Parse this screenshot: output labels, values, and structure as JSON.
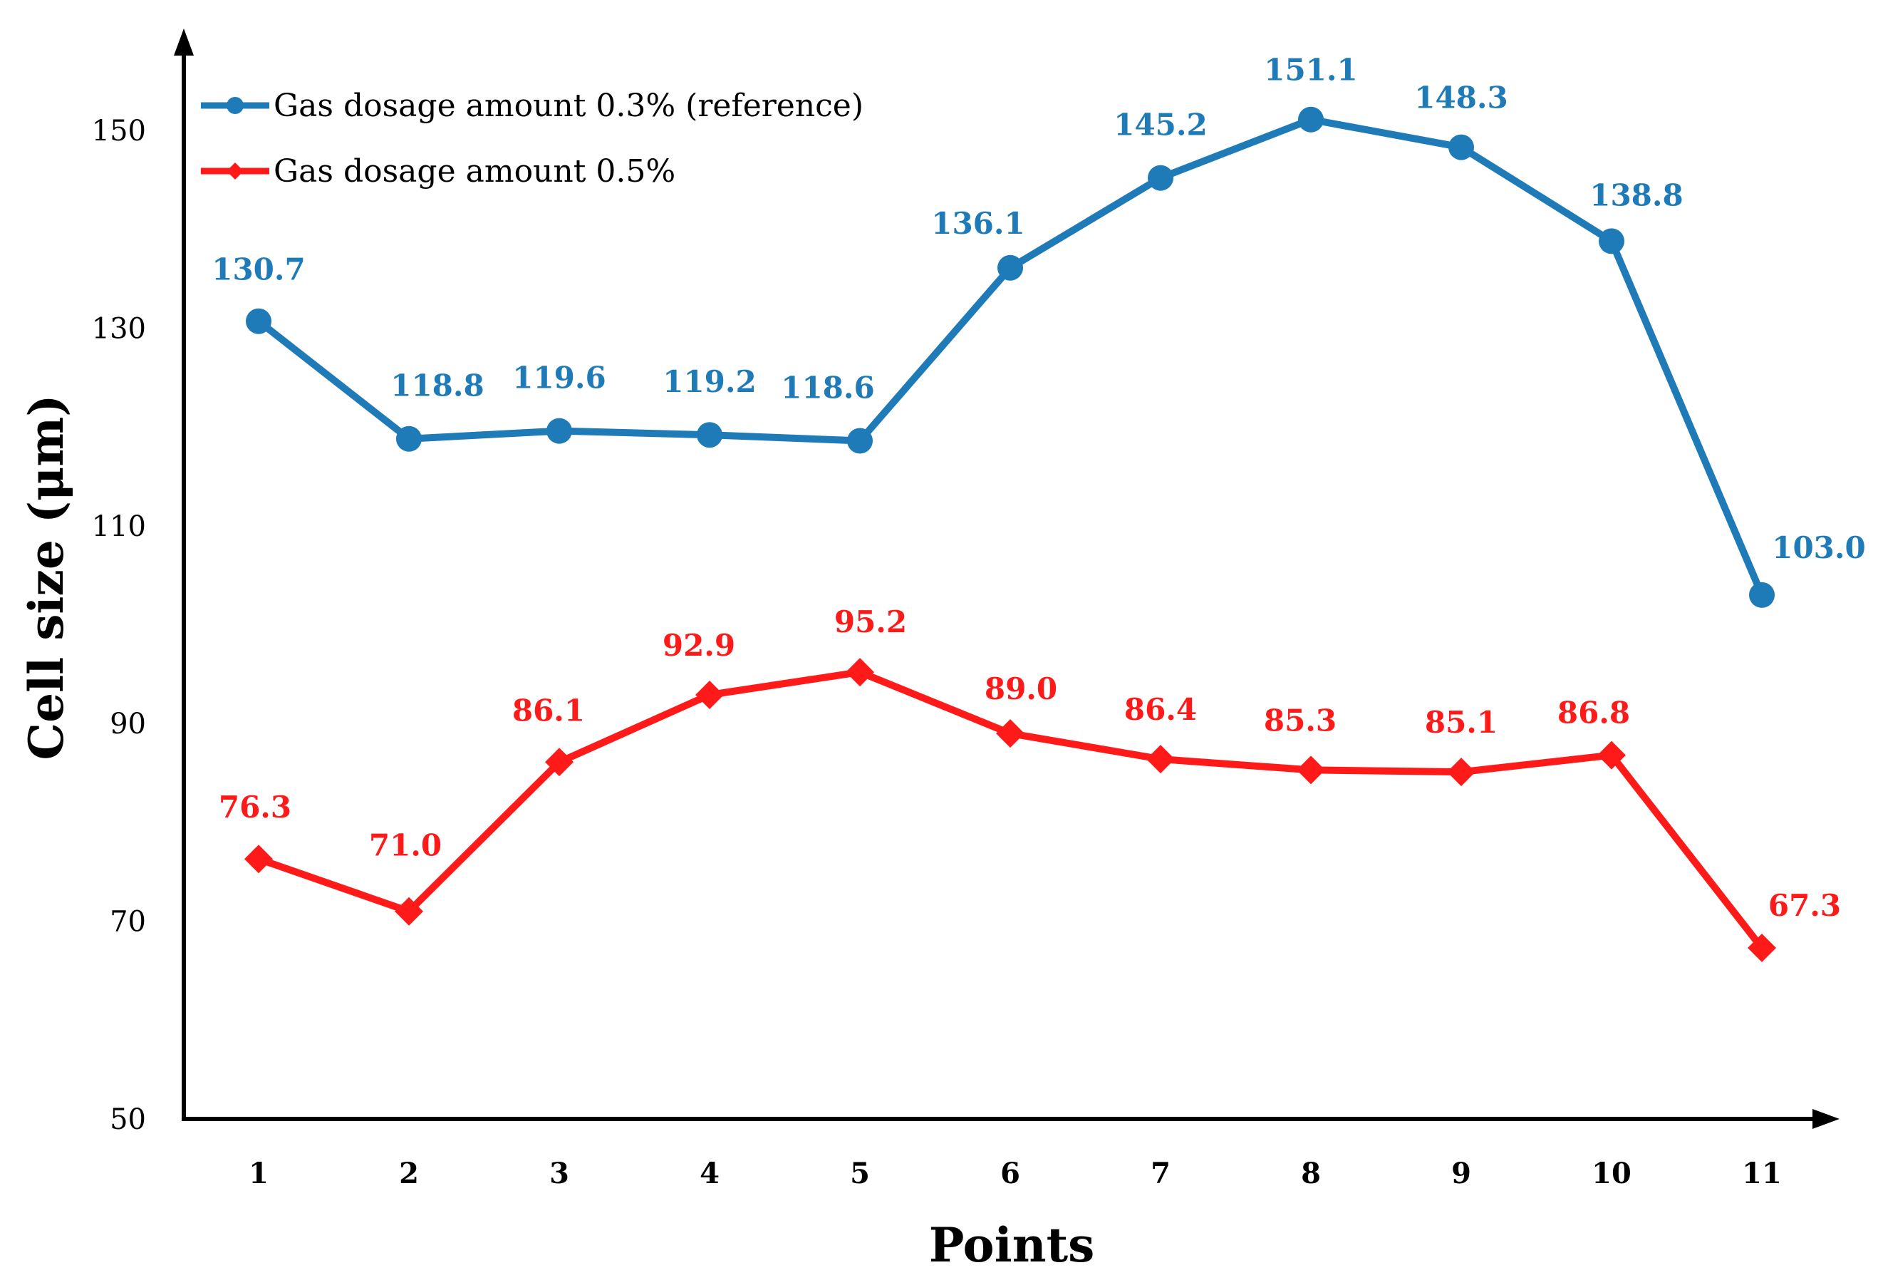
{
  "chart_data": {
    "type": "line",
    "title": "",
    "xlabel": "Points",
    "ylabel": "Cell size (μm)",
    "categories": [
      "1",
      "2",
      "3",
      "4",
      "5",
      "6",
      "7",
      "8",
      "9",
      "10",
      "11"
    ],
    "yticks": [
      "50",
      "70",
      "90",
      "110",
      "130",
      "150"
    ],
    "ylim": [
      50,
      160
    ],
    "grid": false,
    "legend_position": "top-left",
    "series": [
      {
        "name": "Gas dosage amount 0.3% (reference)",
        "color": "#1F7BB8",
        "marker": "circle",
        "values": [
          130.7,
          118.8,
          119.6,
          119.2,
          118.6,
          136.1,
          145.2,
          151.1,
          148.3,
          138.8,
          103.0
        ],
        "labels": [
          "130.7",
          "118.8",
          "119.6",
          "119.2",
          "118.6",
          "136.1",
          "145.2",
          "151.1",
          "148.3",
          "138.8",
          "103.0"
        ]
      },
      {
        "name": "Gas dosage amount 0.5%",
        "color": "#FF1A1A",
        "marker": "diamond",
        "values": [
          76.3,
          71.0,
          86.1,
          92.9,
          95.2,
          89.0,
          86.4,
          85.3,
          85.1,
          86.8,
          67.3
        ],
        "labels": [
          "76.3",
          "71.0",
          "86.1",
          "92.9",
          "95.2",
          "89.0",
          "86.4",
          "85.3",
          "85.1",
          "86.8",
          "67.3"
        ]
      }
    ]
  }
}
